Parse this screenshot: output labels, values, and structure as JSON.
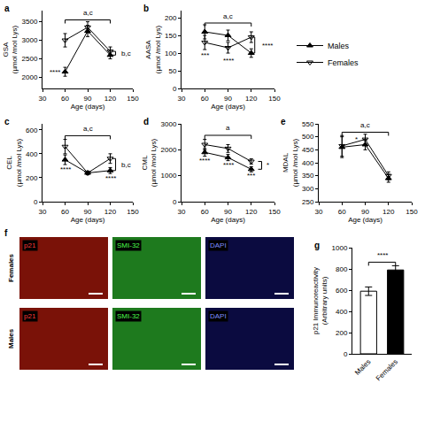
{
  "chart_data": [
    {
      "panel": "a",
      "type": "line",
      "xlabel": "Age (days)",
      "ylabel": "GSA (µmol /mol Lys)",
      "xlim": [
        30,
        150
      ],
      "xticks": [
        30,
        60,
        90,
        120,
        150
      ],
      "ylim": [
        1700,
        3800
      ],
      "yticks": [
        2000,
        2500,
        3000,
        3500
      ],
      "x": [
        60,
        90,
        120
      ],
      "series": [
        {
          "name": "Males",
          "color": "#000000",
          "marker": "triangle-up",
          "values": [
            2150,
            3250,
            2600
          ],
          "errors": [
            120,
            150,
            100
          ]
        },
        {
          "name": "Females",
          "color": "#000000",
          "marker": "triangle-down-open",
          "values": [
            3000,
            3350,
            2700
          ],
          "errors": [
            180,
            150,
            120
          ]
        }
      ],
      "annotations": [
        {
          "text": "****",
          "x": 46,
          "y": 2150
        },
        {
          "text": "a,c",
          "y": 3740,
          "x_span": [
            60,
            120
          ]
        },
        {
          "text": "b,c",
          "x": 141,
          "y": 2650,
          "y_span": [
            2600,
            2700
          ]
        }
      ]
    },
    {
      "panel": "b",
      "type": "line",
      "legend": "right",
      "xlabel": "Age (days)",
      "ylabel": "AASA (µmol /mol Lys)",
      "xlim": [
        30,
        150
      ],
      "xticks": [
        30,
        60,
        90,
        120,
        150
      ],
      "ylim": [
        0,
        220
      ],
      "yticks": [
        0,
        50,
        100,
        150,
        200
      ],
      "x": [
        60,
        90,
        120
      ],
      "series": [
        {
          "name": "Males",
          "color": "#000000",
          "marker": "triangle-up",
          "values": [
            160,
            150,
            100
          ],
          "errors": [
            20,
            15,
            12
          ]
        },
        {
          "name": "Females",
          "color": "#000000",
          "marker": "triangle-down-open",
          "values": [
            130,
            115,
            145
          ],
          "errors": [
            20,
            15,
            15
          ]
        }
      ],
      "annotations": [
        {
          "text": "***",
          "x": 60,
          "y": 95
        },
        {
          "text": "****",
          "x": 90,
          "y": 80
        },
        {
          "text": "****",
          "x": 141,
          "y": 122,
          "y_span": [
            100,
            145
          ]
        },
        {
          "text": "a,c",
          "y": 205,
          "x_span": [
            60,
            120
          ]
        }
      ]
    },
    {
      "panel": "c",
      "type": "line",
      "xlabel": "Age (days)",
      "ylabel": "CEL (µmol /mol Lys)",
      "xlim": [
        30,
        150
      ],
      "xticks": [
        30,
        60,
        90,
        120,
        150
      ],
      "ylim": [
        0,
        650
      ],
      "yticks": [
        0,
        200,
        400,
        600
      ],
      "x": [
        60,
        90,
        120
      ],
      "series": [
        {
          "name": "Males",
          "color": "#000000",
          "marker": "triangle-up",
          "values": [
            350,
            240,
            260
          ],
          "errors": [
            40,
            15,
            25
          ]
        },
        {
          "name": "Females",
          "color": "#000000",
          "marker": "triangle-down-open",
          "values": [
            460,
            240,
            360
          ],
          "errors": [
            60,
            15,
            40
          ]
        }
      ],
      "annotations": [
        {
          "text": "****",
          "x": 60,
          "y": 270
        },
        {
          "text": "****",
          "x": 120,
          "y": 195
        },
        {
          "text": "a,c",
          "y": 610,
          "x_span": [
            60,
            120
          ]
        },
        {
          "text": "b,c",
          "x": 141,
          "y": 310,
          "y_span": [
            260,
            360
          ]
        }
      ]
    },
    {
      "panel": "d",
      "type": "line",
      "xlabel": "Age (days)",
      "ylabel": "CML (µmol /mol Lys)",
      "xlim": [
        30,
        150
      ],
      "xticks": [
        30,
        60,
        90,
        120,
        150
      ],
      "ylim": [
        0,
        3000
      ],
      "yticks": [
        0,
        1000,
        2000,
        3000
      ],
      "x": [
        60,
        90,
        120
      ],
      "series": [
        {
          "name": "Males",
          "color": "#000000",
          "marker": "triangle-up",
          "values": [
            1900,
            1700,
            1250
          ],
          "errors": [
            150,
            120,
            100
          ]
        },
        {
          "name": "Females",
          "color": "#000000",
          "marker": "triangle-down-open",
          "values": [
            2200,
            2050,
            1550
          ],
          "errors": [
            200,
            150,
            100
          ]
        }
      ],
      "annotations": [
        {
          "text": "****",
          "x": 60,
          "y": 1600
        },
        {
          "text": "****",
          "x": 90,
          "y": 1430
        },
        {
          "text": "***",
          "x": 120,
          "y": 1000
        },
        {
          "text": "*",
          "x": 141,
          "y": 1400,
          "y_span": [
            1250,
            1550
          ]
        },
        {
          "text": "a",
          "y": 2830,
          "x_span": [
            60,
            120
          ]
        }
      ]
    },
    {
      "panel": "e",
      "type": "line",
      "xlabel": "Age (days)",
      "ylabel": "MDAL (µmol /mol Lys)",
      "xlim": [
        30,
        150
      ],
      "xticks": [
        30,
        60,
        90,
        120,
        150
      ],
      "ylim": [
        250,
        550
      ],
      "yticks": [
        250,
        300,
        350,
        400,
        450,
        500,
        550
      ],
      "x": [
        60,
        90,
        120
      ],
      "series": [
        {
          "name": "Males",
          "color": "#000000",
          "marker": "triangle-up",
          "values": [
            460,
            470,
            340
          ],
          "errors": [
            40,
            20,
            15
          ]
        },
        {
          "name": "Females",
          "color": "#000000",
          "marker": "triangle-down-open",
          "values": [
            465,
            490,
            350
          ],
          "errors": [
            40,
            20,
            15
          ]
        }
      ],
      "annotations": [
        {
          "text": "*",
          "x": 78,
          "y": 490
        },
        {
          "text": "a,c",
          "y": 545,
          "x_span": [
            60,
            120
          ]
        }
      ]
    },
    {
      "panel": "g",
      "type": "bar",
      "ylabel": "p21 Immunoreactivity (Arbitrary units)",
      "categories": [
        "Males",
        "Females"
      ],
      "values": [
        590,
        790
      ],
      "errors": [
        40,
        40
      ],
      "colors": [
        "#ffffff",
        "#000000"
      ],
      "ylim": [
        0,
        1000
      ],
      "yticks": [
        0,
        200,
        400,
        600,
        800,
        1000
      ],
      "annotations": [
        {
          "text": "****",
          "y": 930,
          "x_span": [
            "Males",
            "Females"
          ]
        }
      ]
    }
  ],
  "image_panel": {
    "panel": "f",
    "rows": [
      "Females",
      "Males"
    ],
    "channels": [
      "p21",
      "SMI-32",
      "DAPI"
    ]
  }
}
